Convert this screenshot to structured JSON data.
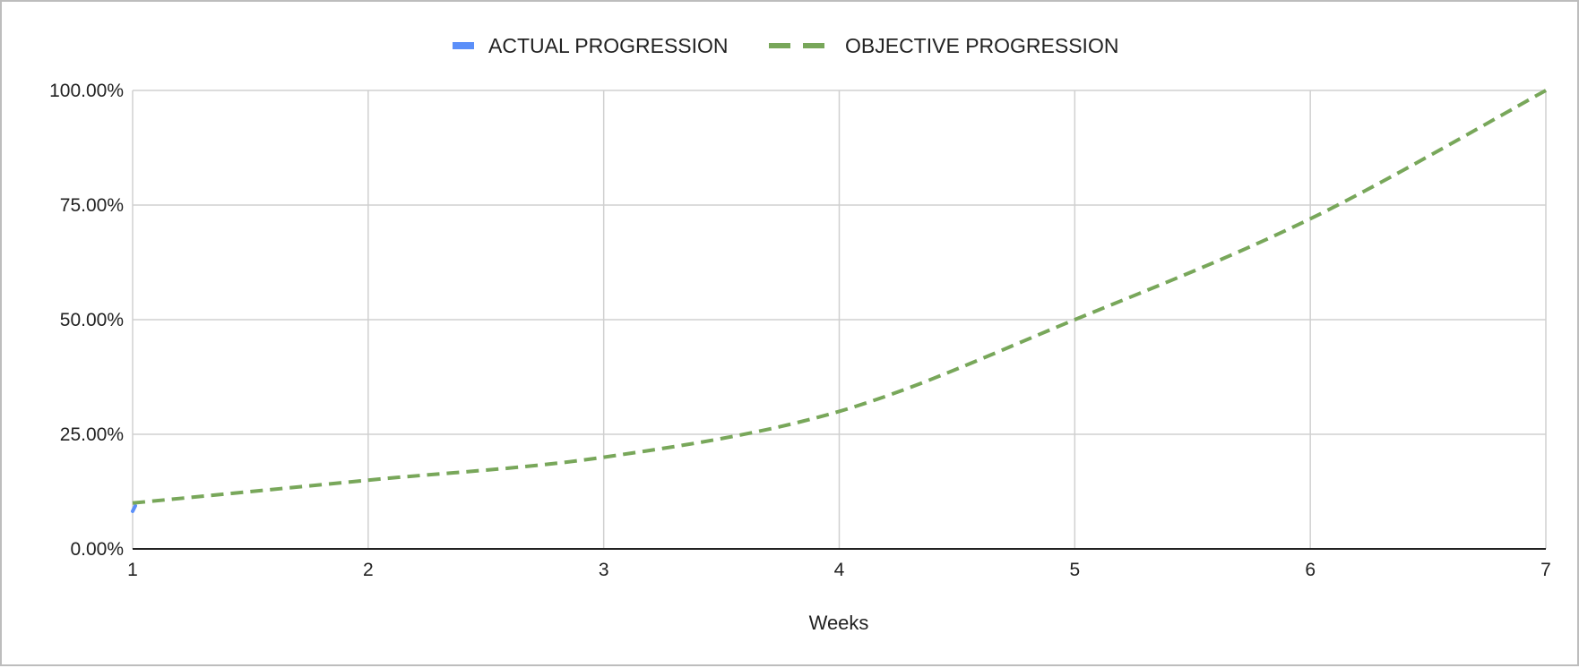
{
  "chart_data": {
    "type": "line",
    "title": "",
    "xlabel": "Weeks",
    "ylabel": "",
    "x": [
      1,
      2,
      3,
      4,
      5,
      6,
      7
    ],
    "x_tick_labels": [
      "1",
      "2",
      "3",
      "4",
      "5",
      "6",
      "7"
    ],
    "xlim": [
      1,
      7
    ],
    "ylim": [
      0,
      1
    ],
    "y_ticks": [
      0,
      0.25,
      0.5,
      0.75,
      1
    ],
    "y_tick_labels": [
      "0.00%",
      "25.00%",
      "50.00%",
      "75.00%",
      "100.00%"
    ],
    "grid": true,
    "legend_position": "top-center",
    "series": [
      {
        "name": "ACTUAL PROGRESSION",
        "color": "#5b8ff9",
        "style": "solid",
        "x": [
          1
        ],
        "values": [
          0.09
        ]
      },
      {
        "name": "OBJECTIVE PROGRESSION",
        "color": "#78a75a",
        "style": "dashed",
        "x": [
          1,
          2,
          3,
          4,
          5,
          6,
          7
        ],
        "values": [
          0.1,
          0.15,
          0.2,
          0.3,
          0.5,
          0.72,
          1.0
        ]
      }
    ]
  }
}
